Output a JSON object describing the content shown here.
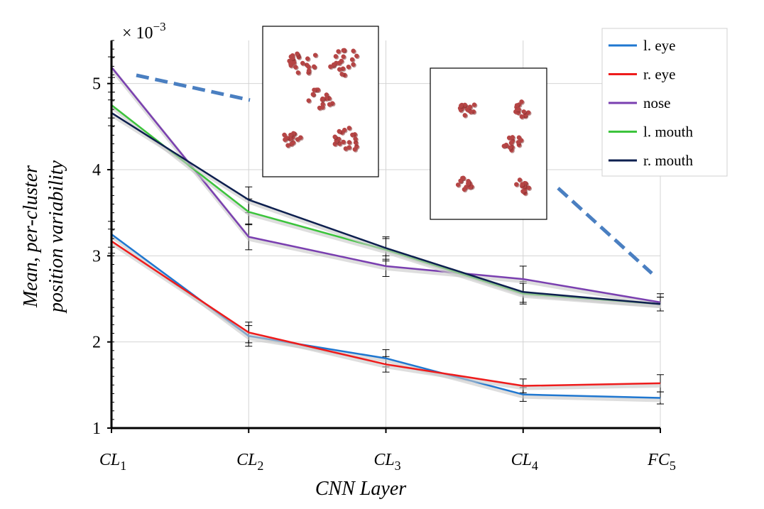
{
  "chart_data": {
    "type": "line",
    "title": "",
    "xlabel": "CNN Layer",
    "ylabel_line1": "Mean, per-cluster",
    "ylabel_line2": "position variability",
    "scale_prefix": "× 10",
    "scale_exponent": "−3",
    "categories": [
      {
        "base": "CL",
        "sub": "1"
      },
      {
        "base": "CL",
        "sub": "2"
      },
      {
        "base": "CL",
        "sub": "3"
      },
      {
        "base": "CL",
        "sub": "4"
      },
      {
        "base": "FC",
        "sub": "5"
      }
    ],
    "ylim": [
      1,
      5.5
    ],
    "yticks": [
      "1",
      "2",
      "3",
      "4",
      "5"
    ],
    "grid": true,
    "legend_position": "top-right",
    "series": [
      {
        "name": "l. eye",
        "color": "#1f77d0",
        "values": [
          3.25,
          2.07,
          1.81,
          1.39,
          1.35
        ],
        "errors": [
          0.15,
          0.12,
          0.1,
          0.08,
          0.07
        ]
      },
      {
        "name": "r. eye",
        "color": "#ee1c1c",
        "values": [
          3.17,
          2.11,
          1.74,
          1.49,
          1.52
        ],
        "errors": [
          0.14,
          0.12,
          0.09,
          0.08,
          0.1
        ]
      },
      {
        "name": "nose",
        "color": "#7a3fb0",
        "values": [
          5.19,
          3.22,
          2.88,
          2.73,
          2.46
        ],
        "errors": [
          0.12,
          0.15,
          0.12,
          0.15,
          0.1
        ]
      },
      {
        "name": "l. mouth",
        "color": "#3cc43c",
        "values": [
          4.75,
          3.51,
          3.07,
          2.56,
          2.44
        ],
        "errors": [
          0.15,
          0.15,
          0.13,
          0.12,
          0.08
        ]
      },
      {
        "name": "r. mouth",
        "color": "#0d1f4f",
        "values": [
          4.66,
          3.65,
          3.09,
          2.58,
          2.44
        ],
        "errors": [
          0.15,
          0.15,
          0.13,
          0.12,
          0.08
        ]
      }
    ],
    "insets": [
      {
        "name": "inset-left",
        "dot_color": "#b54545",
        "dashed_line_color": "#4a7fc1"
      },
      {
        "name": "inset-right",
        "dot_color": "#b54545",
        "dashed_line_color": "#4a7fc1"
      }
    ]
  }
}
